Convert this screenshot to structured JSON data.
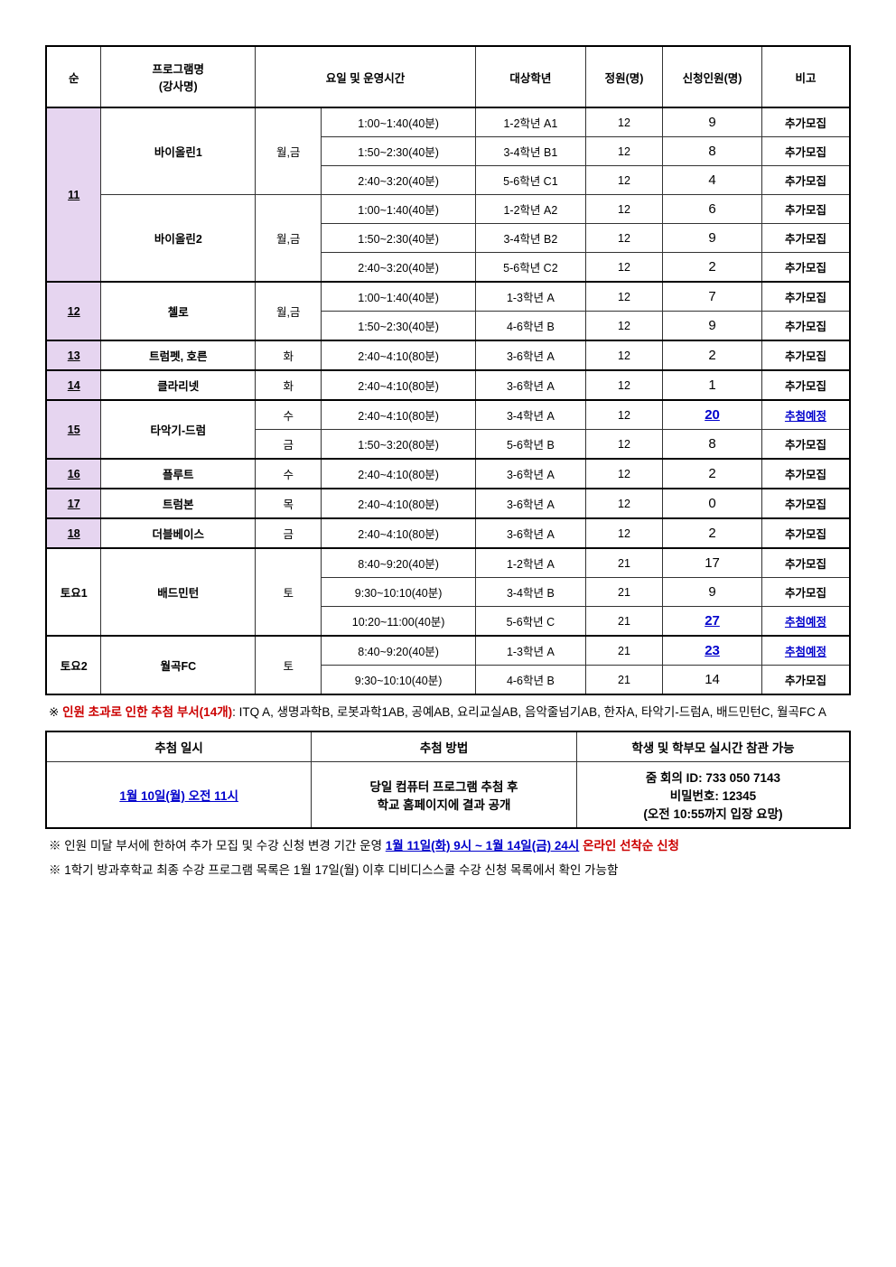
{
  "headers": {
    "seq": "순",
    "program": "프로그램명\n(강사명)",
    "schedule": "요일 및 운영시간",
    "grade": "대상학년",
    "capacity": "정원(명)",
    "applicants": "신청인원(명)",
    "note": "비고"
  },
  "note_additional": "추가모집",
  "note_lottery": "추첨예정",
  "groups": [
    {
      "seq": "11",
      "purple": true,
      "programs": [
        {
          "name": "바이올린1",
          "day": "월,금",
          "slots": [
            {
              "time": "1:00~1:40(40분)",
              "grade": "1-2학년 A1",
              "cap": "12",
              "apply": "9",
              "lottery": false
            },
            {
              "time": "1:50~2:30(40분)",
              "grade": "3-4학년 B1",
              "cap": "12",
              "apply": "8",
              "lottery": false
            },
            {
              "time": "2:40~3:20(40분)",
              "grade": "5-6학년 C1",
              "cap": "12",
              "apply": "4",
              "lottery": false
            }
          ]
        },
        {
          "name": "바이올린2",
          "day": "월,금",
          "slots": [
            {
              "time": "1:00~1:40(40분)",
              "grade": "1-2학년 A2",
              "cap": "12",
              "apply": "6",
              "lottery": false
            },
            {
              "time": "1:50~2:30(40분)",
              "grade": "3-4학년 B2",
              "cap": "12",
              "apply": "9",
              "lottery": false
            },
            {
              "time": "2:40~3:20(40분)",
              "grade": "5-6학년 C2",
              "cap": "12",
              "apply": "2",
              "lottery": false
            }
          ]
        }
      ]
    },
    {
      "seq": "12",
      "purple": true,
      "programs": [
        {
          "name": "첼로",
          "day": "월,금",
          "slots": [
            {
              "time": "1:00~1:40(40분)",
              "grade": "1-3학년 A",
              "cap": "12",
              "apply": "7",
              "lottery": false
            },
            {
              "time": "1:50~2:30(40분)",
              "grade": "4-6학년 B",
              "cap": "12",
              "apply": "9",
              "lottery": false
            }
          ]
        }
      ]
    },
    {
      "seq": "13",
      "purple": true,
      "programs": [
        {
          "name": "트럼펫, 호른",
          "day": "화",
          "slots": [
            {
              "time": "2:40~4:10(80분)",
              "grade": "3-6학년 A",
              "cap": "12",
              "apply": "2",
              "lottery": false
            }
          ]
        }
      ]
    },
    {
      "seq": "14",
      "purple": true,
      "programs": [
        {
          "name": "클라리넷",
          "day": "화",
          "slots": [
            {
              "time": "2:40~4:10(80분)",
              "grade": "3-6학년 A",
              "cap": "12",
              "apply": "1",
              "lottery": false
            }
          ]
        }
      ]
    },
    {
      "seq": "15",
      "purple": true,
      "programs": [
        {
          "name": "타악기-드럼",
          "day_per_slot": true,
          "slots": [
            {
              "day": "수",
              "time": "2:40~4:10(80분)",
              "grade": "3-4학년 A",
              "cap": "12",
              "apply": "20",
              "lottery": true
            },
            {
              "day": "금",
              "time": "1:50~3:20(80분)",
              "grade": "5-6학년 B",
              "cap": "12",
              "apply": "8",
              "lottery": false
            }
          ]
        }
      ]
    },
    {
      "seq": "16",
      "purple": true,
      "programs": [
        {
          "name": "플루트",
          "day": "수",
          "slots": [
            {
              "time": "2:40~4:10(80분)",
              "grade": "3-6학년 A",
              "cap": "12",
              "apply": "2",
              "lottery": false
            }
          ]
        }
      ]
    },
    {
      "seq": "17",
      "purple": true,
      "programs": [
        {
          "name": "트럼본",
          "day": "목",
          "slots": [
            {
              "time": "2:40~4:10(80분)",
              "grade": "3-6학년 A",
              "cap": "12",
              "apply": "0",
              "lottery": false
            }
          ]
        }
      ]
    },
    {
      "seq": "18",
      "purple": true,
      "programs": [
        {
          "name": "더블베이스",
          "day": "금",
          "slots": [
            {
              "time": "2:40~4:10(80분)",
              "grade": "3-6학년 A",
              "cap": "12",
              "apply": "2",
              "lottery": false
            }
          ]
        }
      ]
    },
    {
      "seq": "토요1",
      "purple": false,
      "programs": [
        {
          "name": "배드민턴",
          "day": "토",
          "slots": [
            {
              "time": "8:40~9:20(40분)",
              "grade": "1-2학년 A",
              "cap": "21",
              "apply": "17",
              "lottery": false
            },
            {
              "time": "9:30~10:10(40분)",
              "grade": "3-4학년 B",
              "cap": "21",
              "apply": "9",
              "lottery": false
            },
            {
              "time": "10:20~11:00(40분)",
              "grade": "5-6학년 C",
              "cap": "21",
              "apply": "27",
              "lottery": true
            }
          ]
        }
      ]
    },
    {
      "seq": "토요2",
      "purple": false,
      "programs": [
        {
          "name": "월곡FC",
          "day": "토",
          "slots": [
            {
              "time": "8:40~9:20(40분)",
              "grade": "1-3학년 A",
              "cap": "21",
              "apply": "23",
              "lottery": true
            },
            {
              "time": "9:30~10:10(40분)",
              "grade": "4-6학년 B",
              "cap": "21",
              "apply": "14",
              "lottery": false
            }
          ]
        }
      ]
    }
  ],
  "footnote1_prefix": "※ ",
  "footnote1_red": "인원 초과로 인한 추첨 부서(14개)",
  "footnote1_rest": ": ITQ A, 생명과학B, 로봇과학1AB, 공예AB, 요리교실AB, 음악줄넘기AB, 한자A, 타악기-드럼A, 배드민턴C, 월곡FC A",
  "info_headers": {
    "date": "추첨 일시",
    "method": "추첨 방법",
    "observe": "학생 및 학부모 실시간 참관 가능"
  },
  "info_date": "1월 10일(월) 오전 11시",
  "info_method": "당일 컴퓨터 프로그램 추첨 후\n학교 홈페이지에 결과 공개",
  "info_zoom_id": "줌 회의 ID: 733 050 7143",
  "info_zoom_pw": "비밀번호: 12345",
  "info_zoom_time": "(오전 10:55까지 입장 요망)",
  "footnote2_prefix": "※ 인원 미달 부서에 한하여 추가 모집 및 수강 신청 변경 기간 운영 ",
  "footnote2_blue": "1월 11일(화) 9시 ~ 1월 14일(금) 24시",
  "footnote2_red": " 온라인 선착순 신청",
  "footnote3": "※ 1학기 방과후학교 최종 수강 프로그램 목록은 1월 17일(월) 이후 디비디스스쿨 수강 신청 목록에서 확인 가능함"
}
